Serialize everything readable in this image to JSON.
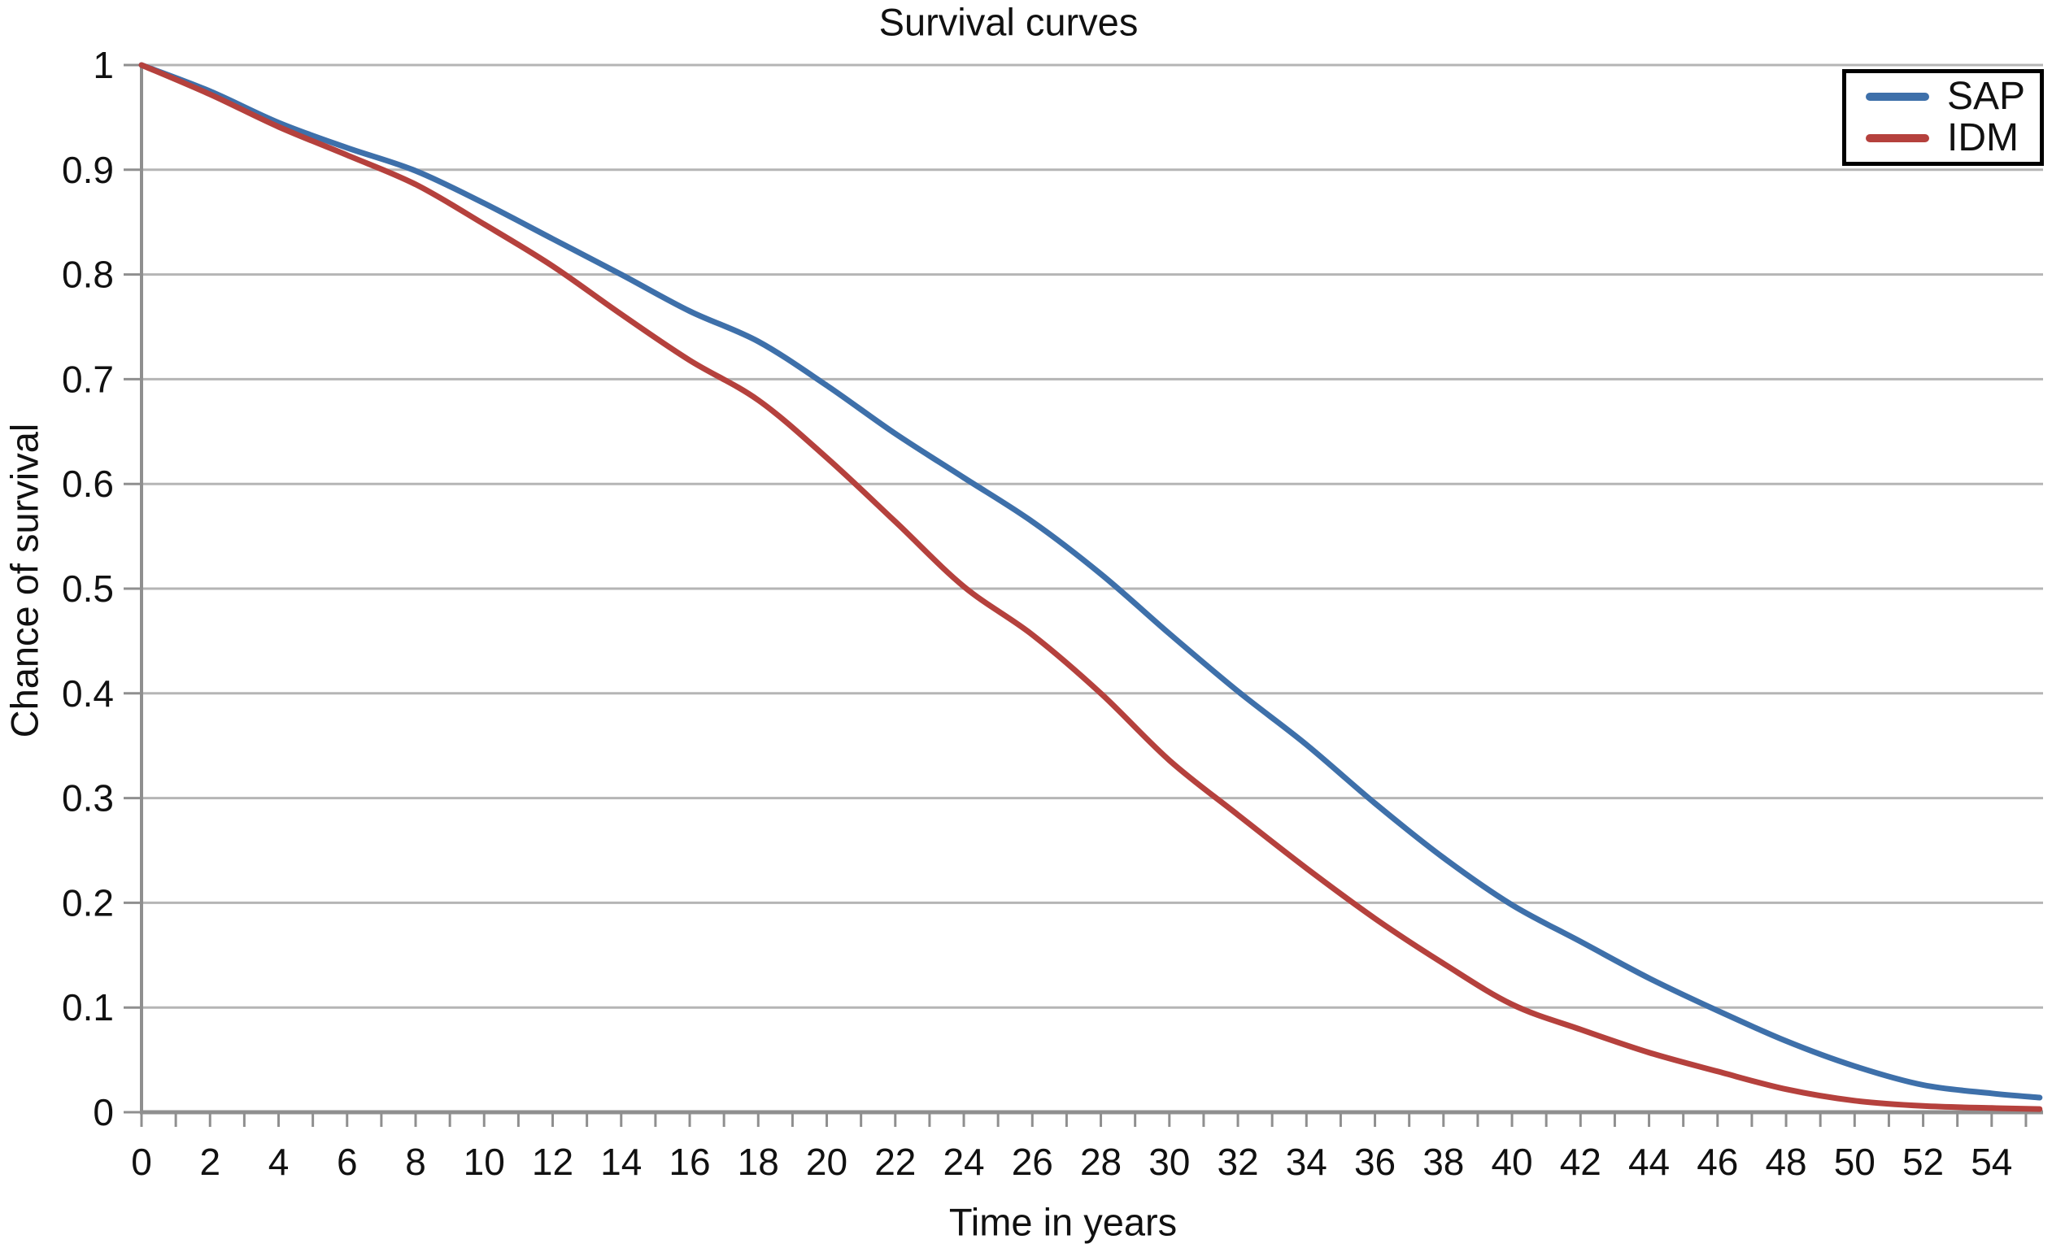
{
  "figure_title": "Survival curves",
  "chart_data": {
    "type": "line",
    "title": "Survival curves",
    "xlabel": "Time in years",
    "ylabel": "Chance of survival",
    "xlim": [
      0,
      55.5
    ],
    "ylim": [
      0,
      1
    ],
    "grid": "horizontal",
    "legend_position": "top-right",
    "x_minor_tick_step": 1,
    "x_label_step": 2,
    "x_tick_labels": [
      "0",
      "2",
      "4",
      "6",
      "8",
      "10",
      "12",
      "14",
      "16",
      "18",
      "20",
      "22",
      "24",
      "26",
      "28",
      "30",
      "32",
      "34",
      "36",
      "38",
      "40",
      "42",
      "44",
      "46",
      "48",
      "50",
      "52",
      "54"
    ],
    "y_tick_labels": [
      "0",
      "0.1",
      "0.2",
      "0.3",
      "0.4",
      "0.5",
      "0.6",
      "0.7",
      "0.8",
      "0.9",
      "1"
    ],
    "x": [
      0,
      2,
      4,
      6,
      8,
      10,
      12,
      14,
      16,
      18,
      20,
      22,
      24,
      26,
      28,
      30,
      32,
      34,
      36,
      38,
      40,
      42,
      44,
      46,
      48,
      50,
      52,
      54,
      55.4
    ],
    "series": [
      {
        "name": "SAP",
        "color": "#3e70aa",
        "values": [
          1.0,
          0.975,
          0.945,
          0.921,
          0.899,
          0.868,
          0.834,
          0.8,
          0.765,
          0.736,
          0.694,
          0.648,
          0.606,
          0.564,
          0.514,
          0.457,
          0.402,
          0.351,
          0.295,
          0.243,
          0.198,
          0.163,
          0.128,
          0.097,
          0.068,
          0.044,
          0.026,
          0.018,
          0.014
        ]
      },
      {
        "name": "IDM",
        "color": "#b5413d",
        "values": [
          1.0,
          0.972,
          0.941,
          0.914,
          0.886,
          0.848,
          0.808,
          0.762,
          0.718,
          0.68,
          0.625,
          0.564,
          0.502,
          0.456,
          0.4,
          0.336,
          0.284,
          0.233,
          0.185,
          0.142,
          0.103,
          0.079,
          0.057,
          0.039,
          0.022,
          0.011,
          0.006,
          0.004,
          0.003
        ]
      }
    ],
    "style": {
      "grid_color": "#b5b5b5",
      "axis_color": "#8f8f8f",
      "tick_label_color": "#111111",
      "line_width": 7
    }
  }
}
